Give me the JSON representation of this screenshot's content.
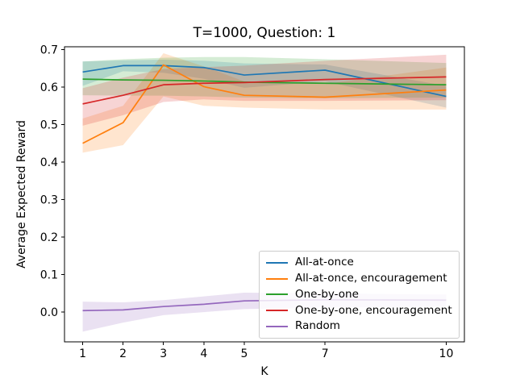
{
  "chart_data": {
    "type": "line",
    "title": "T=1000, Question: 1",
    "xlabel": "K",
    "ylabel": "Average Expected Reward",
    "grid": false,
    "legend_position": "lower right",
    "band_alpha": 0.2,
    "xlim": [
      0.55,
      10.45
    ],
    "ylim": [
      -0.0792,
      0.7073
    ],
    "x": [
      1,
      2,
      3,
      4,
      5,
      7,
      10
    ],
    "x_tick_labels": [
      "1",
      "2",
      "3",
      "4",
      "5",
      "7",
      "10"
    ],
    "y_ticks": [
      0.0,
      0.1,
      0.2,
      0.3,
      0.4,
      0.5,
      0.6,
      0.7
    ],
    "y_tick_labels": [
      "0.0",
      "0.1",
      "0.2",
      "0.3",
      "0.4",
      "0.5",
      "0.6",
      "0.7"
    ],
    "series": [
      {
        "name": "All-at-once",
        "color": "#1f77b4",
        "values": [
          0.64,
          0.657,
          0.657,
          0.652,
          0.632,
          0.645,
          0.575
        ],
        "band_lower": [
          0.603,
          0.642,
          0.638,
          0.622,
          0.598,
          0.615,
          0.545
        ],
        "band_upper": [
          0.668,
          0.671,
          0.673,
          0.67,
          0.663,
          0.66,
          0.603
        ]
      },
      {
        "name": "All-at-once, encouragement",
        "color": "#ff7f0e",
        "values": [
          0.45,
          0.505,
          0.659,
          0.601,
          0.578,
          0.573,
          0.592
        ],
        "band_lower": [
          0.425,
          0.445,
          0.575,
          0.55,
          0.545,
          0.54,
          0.54
        ],
        "band_upper": [
          0.516,
          0.55,
          0.69,
          0.655,
          0.615,
          0.608,
          0.652
        ]
      },
      {
        "name": "One-by-one",
        "color": "#2ca02c",
        "values": [
          0.621,
          0.619,
          0.618,
          0.616,
          0.613,
          0.61,
          0.606
        ],
        "band_lower": [
          0.578,
          0.577,
          0.577,
          0.575,
          0.572,
          0.57,
          0.572
        ],
        "band_upper": [
          0.668,
          0.674,
          0.678,
          0.68,
          0.68,
          0.674,
          0.664
        ]
      },
      {
        "name": "One-by-one, encouragement",
        "color": "#d62728",
        "values": [
          0.555,
          0.578,
          0.606,
          0.61,
          0.612,
          0.62,
          0.627
        ],
        "band_lower": [
          0.497,
          0.525,
          0.56,
          0.567,
          0.563,
          0.563,
          0.565
        ],
        "band_upper": [
          0.597,
          0.625,
          0.648,
          0.653,
          0.657,
          0.67,
          0.686
        ]
      },
      {
        "name": "Random",
        "color": "#9467bd",
        "values": [
          0.004,
          0.006,
          0.015,
          0.021,
          0.03,
          0.033,
          0.032
        ],
        "band_lower": [
          -0.052,
          -0.028,
          -0.008,
          0.0,
          0.008,
          0.012,
          0.015
        ],
        "band_upper": [
          0.028,
          0.026,
          0.032,
          0.042,
          0.052,
          0.05,
          0.047
        ]
      }
    ]
  }
}
